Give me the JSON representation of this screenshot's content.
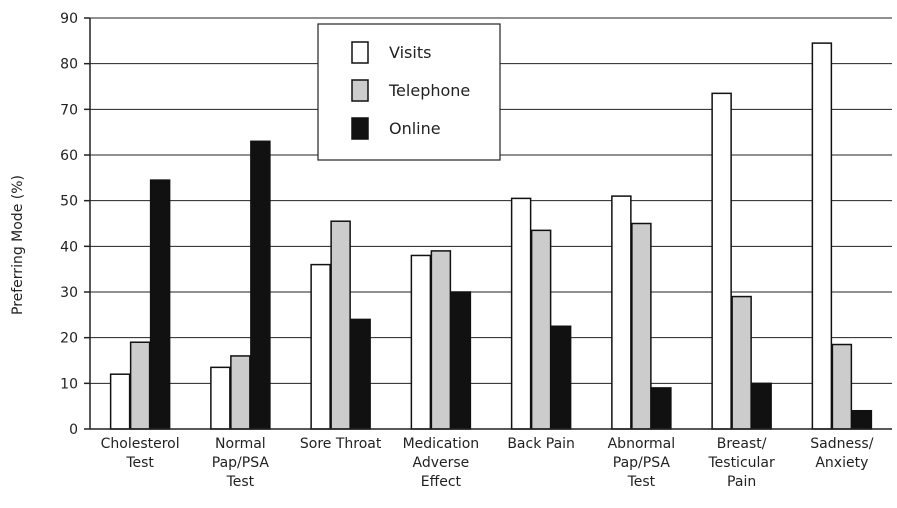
{
  "chart_data": {
    "type": "bar",
    "title": "",
    "xlabel": "",
    "ylabel": "Preferring Mode (%)",
    "ylim": [
      0,
      90
    ],
    "yticks": [
      "0",
      "10",
      "20",
      "30",
      "40",
      "50",
      "60",
      "70",
      "80",
      "90"
    ],
    "grid": true,
    "legend_position": "top-center",
    "categories": [
      [
        "Cholesterol",
        "Test"
      ],
      [
        "Normal",
        "Pap/PSA",
        "Test"
      ],
      [
        "Sore Throat"
      ],
      [
        "Medication",
        "Adverse",
        "Effect"
      ],
      [
        "Back Pain"
      ],
      [
        "Abnormal",
        "Pap/PSA",
        "Test"
      ],
      [
        "Breast/",
        "Testicular",
        "Pain"
      ],
      [
        "Sadness/",
        "Anxiety"
      ]
    ],
    "series": [
      {
        "name": "Visits",
        "color": "#ffffff",
        "values": [
          12,
          13.5,
          36,
          38,
          50.5,
          51,
          73.5,
          84.5
        ]
      },
      {
        "name": "Telephone",
        "color": "#cccccc",
        "values": [
          19,
          16,
          45.5,
          39,
          43.5,
          45,
          29,
          18.5
        ]
      },
      {
        "name": "Online",
        "color": "#111111",
        "values": [
          54.5,
          63,
          24,
          30,
          22.5,
          9,
          10,
          4
        ]
      }
    ]
  }
}
